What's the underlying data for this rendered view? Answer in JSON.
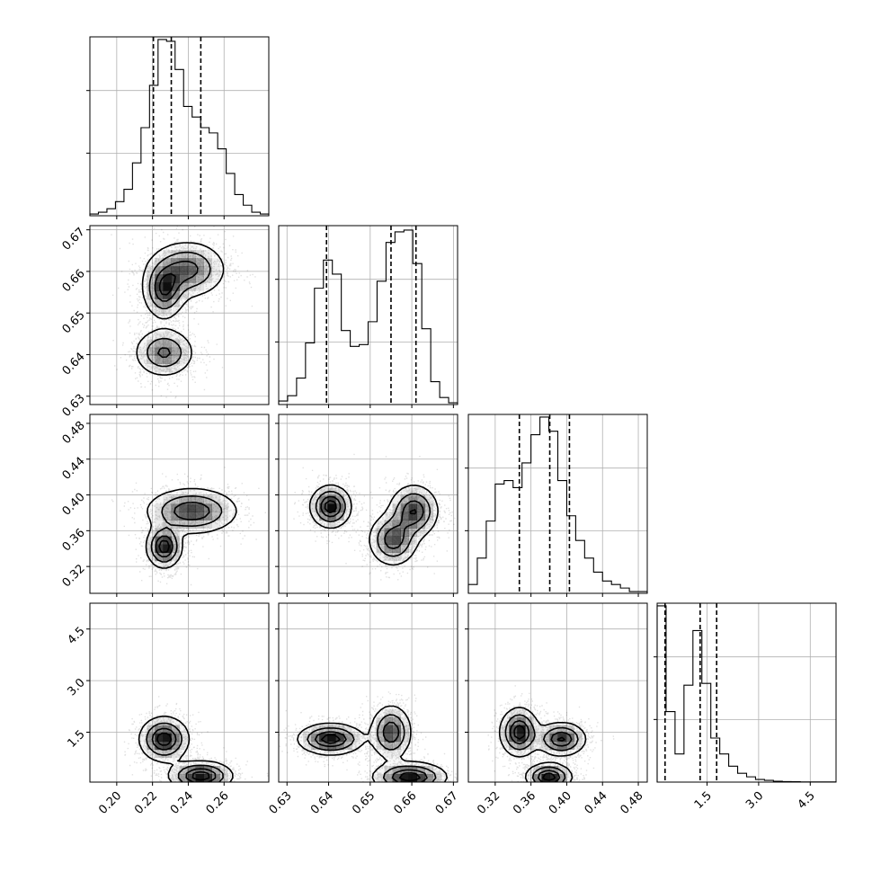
{
  "chart_data": {
    "type": "corner",
    "grid": true,
    "parameters": [
      {
        "range": [
          0.185,
          0.285
        ],
        "ticks": [
          "0.20",
          "0.22",
          "0.24",
          "0.26"
        ],
        "quantiles": [
          0.2205,
          0.2305,
          0.247
        ]
      },
      {
        "range": [
          0.628,
          0.671
        ],
        "ticks": [
          "0.63",
          "0.64",
          "0.65",
          "0.66",
          "0.67"
        ],
        "quantiles": [
          0.6395,
          0.655,
          0.661
        ]
      },
      {
        "range": [
          0.29,
          0.49
        ],
        "ticks": [
          "0.32",
          "0.36",
          "0.40",
          "0.44",
          "0.48"
        ],
        "quantiles": [
          0.347,
          0.381,
          0.403
        ]
      },
      {
        "range": [
          0.05,
          5.25
        ],
        "ticks": [
          "1.5",
          "3.0",
          "4.5"
        ],
        "quantiles": [
          0.28,
          1.3,
          1.78
        ]
      }
    ],
    "histograms": [
      [
        0.01,
        0.02,
        0.04,
        0.08,
        0.15,
        0.3,
        0.5,
        0.74,
        1.0,
        0.99,
        0.83,
        0.62,
        0.56,
        0.5,
        0.47,
        0.38,
        0.24,
        0.12,
        0.06,
        0.02,
        0.01
      ],
      [
        0.02,
        0.05,
        0.15,
        0.35,
        0.66,
        0.82,
        0.74,
        0.42,
        0.33,
        0.34,
        0.47,
        0.7,
        0.92,
        0.98,
        0.99,
        0.8,
        0.43,
        0.13,
        0.04,
        0.01
      ],
      [
        0.05,
        0.2,
        0.41,
        0.62,
        0.64,
        0.6,
        0.74,
        0.9,
        1.0,
        0.92,
        0.64,
        0.44,
        0.3,
        0.2,
        0.12,
        0.07,
        0.05,
        0.03,
        0.01,
        0.01
      ],
      [
        1.0,
        0.4,
        0.16,
        0.55,
        0.86,
        0.56,
        0.25,
        0.16,
        0.09,
        0.05,
        0.03,
        0.015,
        0.01,
        0.005,
        0.003,
        0.002,
        0.001,
        0.001,
        0.001,
        0.001
      ]
    ],
    "modes": {
      "0-1": [
        {
          "x": 0.2265,
          "y": 0.6555,
          "sx": 0.006,
          "sy": 0.0035,
          "w": 1.0
        },
        {
          "x": 0.2395,
          "y": 0.6605,
          "sx": 0.011,
          "sy": 0.0035,
          "w": 0.9
        },
        {
          "x": 0.2265,
          "y": 0.6405,
          "sx": 0.0085,
          "sy": 0.003,
          "w": 0.85
        }
      ],
      "0-2": [
        {
          "x": 0.2265,
          "y": 0.342,
          "sx": 0.005,
          "sy": 0.012,
          "w": 1.0
        },
        {
          "x": 0.242,
          "y": 0.382,
          "sx": 0.013,
          "sy": 0.013,
          "w": 0.85
        }
      ],
      "1-2": [
        {
          "x": 0.6405,
          "y": 0.387,
          "sx": 0.0025,
          "sy": 0.012,
          "w": 1.0
        },
        {
          "x": 0.6555,
          "y": 0.35,
          "sx": 0.003,
          "sy": 0.015,
          "w": 0.8
        },
        {
          "x": 0.6605,
          "y": 0.382,
          "sx": 0.003,
          "sy": 0.015,
          "w": 0.85
        }
      ],
      "0-3": [
        {
          "x": 0.2265,
          "y": 1.3,
          "sx": 0.007,
          "sy": 0.33,
          "w": 1.0
        },
        {
          "x": 0.247,
          "y": 0.23,
          "sx": 0.009,
          "sy": 0.22,
          "w": 1.0
        }
      ],
      "1-3": [
        {
          "x": 0.6405,
          "y": 1.3,
          "sx": 0.004,
          "sy": 0.23,
          "w": 1.0
        },
        {
          "x": 0.655,
          "y": 1.5,
          "sx": 0.0025,
          "sy": 0.4,
          "w": 0.85
        },
        {
          "x": 0.6595,
          "y": 0.2,
          "sx": 0.0045,
          "sy": 0.22,
          "w": 1.0
        }
      ],
      "2-3": [
        {
          "x": 0.347,
          "y": 1.5,
          "sx": 0.011,
          "sy": 0.36,
          "w": 1.0
        },
        {
          "x": 0.394,
          "y": 1.3,
          "sx": 0.014,
          "sy": 0.25,
          "w": 0.9
        },
        {
          "x": 0.38,
          "y": 0.2,
          "sx": 0.013,
          "sy": 0.2,
          "w": 1.0
        }
      ]
    }
  }
}
